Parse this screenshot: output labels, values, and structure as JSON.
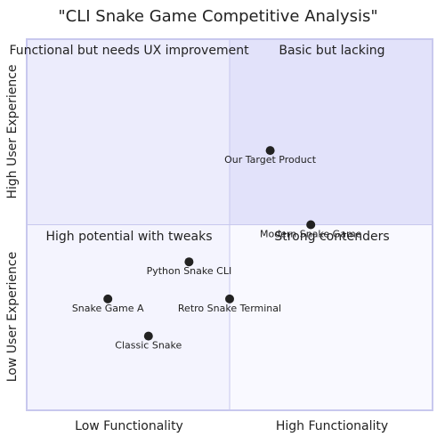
{
  "chart_data": {
    "type": "scatter",
    "title": "\"CLI Snake Game Competitive Analysis\"",
    "x_axis": {
      "low": "Low Functionality",
      "high": "High Functionality"
    },
    "y_axis": {
      "low": "Low User Experience",
      "high": "High User Experience"
    },
    "xlim": [
      0,
      1
    ],
    "ylim": [
      0,
      1
    ],
    "quadrants": {
      "top_left": "Functional but needs UX improvement",
      "top_right": "Basic but lacking",
      "bottom_left": "High potential with tweaks",
      "bottom_right": "Strong contenders"
    },
    "points": [
      {
        "label": "Our Target Product",
        "x": 0.6,
        "y": 0.7
      },
      {
        "label": "Modern Snake Game",
        "x": 0.7,
        "y": 0.5
      },
      {
        "label": "Python Snake CLI",
        "x": 0.4,
        "y": 0.4
      },
      {
        "label": "Snake Game A",
        "x": 0.2,
        "y": 0.3
      },
      {
        "label": "Retro Snake Terminal",
        "x": 0.5,
        "y": 0.3
      },
      {
        "label": "Classic Snake",
        "x": 0.3,
        "y": 0.2
      }
    ],
    "colors": {
      "quadrant_top_left": "#ececfc",
      "quadrant_top_right": "#e2e2fa",
      "quadrant_bottom_left": "#f4f4fe",
      "quadrant_bottom_right": "#f9f9ff",
      "border": "#c8c8ee",
      "point": "#222222"
    }
  }
}
